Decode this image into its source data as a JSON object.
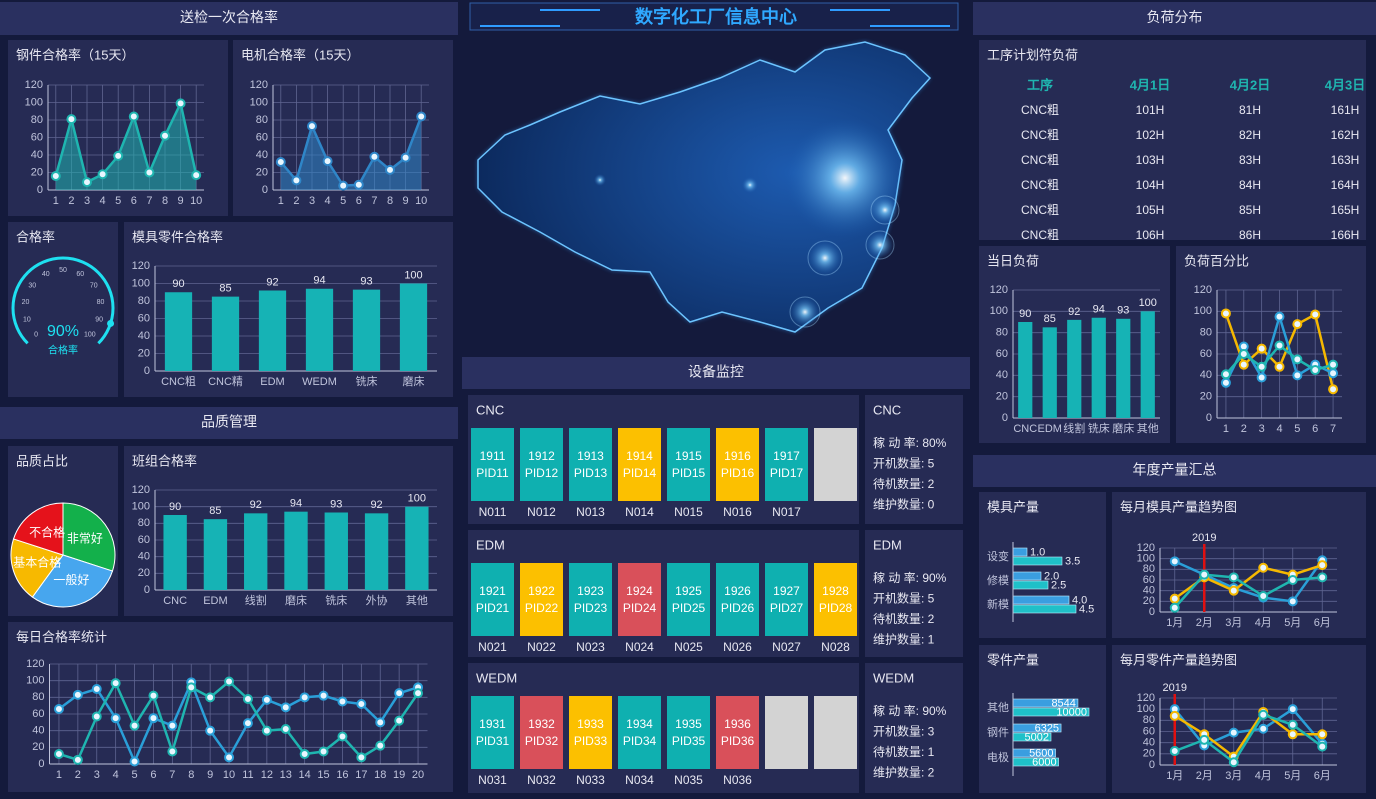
{
  "header": {
    "title": "数字化工厂信息中心"
  },
  "sections": [
    "送检一次合格率",
    "品质管理",
    "设备监控",
    "负荷分布",
    "年度产量汇总"
  ],
  "chart_data": [
    {
      "type": "line",
      "title": "钢件合格率（15天）",
      "categories": [
        "1",
        "2",
        "3",
        "4",
        "5",
        "6",
        "7",
        "8",
        "9",
        "10"
      ],
      "series": [
        {
          "color": "#1fb5b0",
          "values": [
            16,
            81,
            9,
            18,
            39,
            84,
            20,
            62,
            99,
            17
          ]
        }
      ],
      "area": true,
      "ylim": [
        0,
        120
      ],
      "yticks": [
        0,
        20,
        40,
        60,
        80,
        100,
        120
      ],
      "grid": "both"
    },
    {
      "type": "line",
      "title": "电机合格率（15天）",
      "categories": [
        "1",
        "2",
        "3",
        "4",
        "5",
        "6",
        "7",
        "8",
        "9",
        "10"
      ],
      "series": [
        {
          "color": "#2f86c8",
          "values": [
            32,
            11,
            73,
            33,
            5,
            6,
            38,
            23,
            37,
            84
          ]
        }
      ],
      "area": true,
      "ylim": [
        0,
        120
      ],
      "yticks": [
        0,
        20,
        40,
        60,
        80,
        100,
        120
      ],
      "grid": "both"
    },
    {
      "type": "gauge",
      "title": "合格率",
      "label": "合格率",
      "values": [
        90
      ],
      "value_labels": [
        "90%"
      ],
      "lim": [
        0,
        100
      ],
      "ticks": [
        0,
        10,
        20,
        30,
        40,
        50,
        60,
        70,
        80,
        90,
        100
      ],
      "color": "#1ee0f0"
    },
    {
      "type": "bar",
      "title": "模具零件合格率",
      "categories": [
        "CNC粗",
        "CNC精",
        "EDM",
        "WEDM",
        "铣床",
        "磨床"
      ],
      "values": [
        90,
        85,
        92,
        94,
        93,
        100
      ],
      "color": "#16b3b5",
      "labels": true,
      "ylim": [
        0,
        120
      ],
      "yticks": [
        0,
        20,
        40,
        60,
        80,
        100,
        120
      ],
      "grid": "y"
    },
    {
      "type": "pie",
      "title": "品质占比",
      "categories": [
        "非常好",
        "一般好",
        "基本合格",
        "不合格"
      ],
      "values": [
        30,
        30,
        20,
        20
      ],
      "colors": [
        "#13b04b",
        "#47a6ee",
        "#f7b900",
        "#e5121b"
      ]
    },
    {
      "type": "bar",
      "title": "班组合格率",
      "categories": [
        "CNC",
        "EDM",
        "线割",
        "磨床",
        "铣床",
        "外协",
        "其他"
      ],
      "values": [
        90,
        85,
        92,
        94,
        93,
        92,
        100
      ],
      "color": "#16b3b5",
      "labels": true,
      "ylim": [
        0,
        120
      ],
      "yticks": [
        0,
        20,
        40,
        60,
        80,
        100,
        120
      ],
      "grid": "y"
    },
    {
      "type": "line",
      "title": "每日合格率统计",
      "categories": [
        "1",
        "2",
        "3",
        "4",
        "5",
        "6",
        "7",
        "8",
        "9",
        "10",
        "11",
        "12",
        "13",
        "14",
        "15",
        "16",
        "17",
        "18",
        "19",
        "20"
      ],
      "series": [
        {
          "color": "#2a9fd8",
          "values": [
            66,
            83,
            90,
            55,
            3,
            55,
            46,
            98,
            40,
            8,
            49,
            77,
            68,
            80,
            82,
            75,
            72,
            50,
            85,
            92
          ]
        },
        {
          "color": "#1fb5b0",
          "values": [
            12,
            5,
            57,
            97,
            46,
            82,
            15,
            92,
            80,
            99,
            78,
            40,
            42,
            12,
            15,
            33,
            8,
            22,
            52,
            85
          ]
        }
      ],
      "ylim": [
        0,
        120
      ],
      "yticks": [
        0,
        20,
        40,
        60,
        80,
        100,
        120
      ],
      "grid": "both"
    },
    {
      "type": "bar",
      "title": "当日负荷",
      "categories": [
        "CNC",
        "EDM",
        "线割",
        "铣床",
        "磨床",
        "其他"
      ],
      "values": [
        90,
        85,
        92,
        94,
        93,
        100
      ],
      "color": "#16b3b5",
      "labels": true,
      "ylim": [
        0,
        120
      ],
      "yticks": [
        0,
        20,
        40,
        60,
        80,
        100,
        120
      ],
      "grid": "y"
    },
    {
      "type": "line",
      "title": "负荷百分比",
      "categories": [
        "1",
        "2",
        "3",
        "4",
        "5",
        "6",
        "7"
      ],
      "series": [
        {
          "color": "#f5b800",
          "values": [
            98,
            50,
            65,
            48,
            88,
            97,
            27
          ]
        },
        {
          "color": "#2a9fd8",
          "values": [
            33,
            67,
            38,
            95,
            40,
            50,
            42
          ]
        },
        {
          "color": "#1fb5b0",
          "values": [
            41,
            60,
            48,
            68,
            55,
            45,
            50
          ]
        }
      ],
      "ylim": [
        0,
        120
      ],
      "yticks": [
        0,
        20,
        40,
        60,
        80,
        100,
        120
      ],
      "grid": "both"
    },
    {
      "type": "barh",
      "title": "模具产量",
      "categories": [
        "设变",
        "修模",
        "新模"
      ],
      "series": [
        {
          "color": "#3a9ee0",
          "values": [
            1.0,
            2.0,
            4.0
          ],
          "value_labels": [
            "1.0",
            "2.0",
            "4.0"
          ]
        },
        {
          "color": "#1fc0c8",
          "values": [
            3.5,
            2.5,
            4.5
          ],
          "value_labels": [
            "3.5",
            "2.5",
            "4.5"
          ]
        }
      ],
      "xlim": [
        0,
        5
      ],
      "label_position": "outside"
    },
    {
      "type": "line",
      "title": "每月模具产量趋势图",
      "categories": [
        "1月",
        "2月",
        "3月",
        "4月",
        "5月",
        "6月"
      ],
      "series": [
        {
          "color": "#2a9fd8",
          "values": [
            95,
            70,
            45,
            27,
            20,
            97
          ]
        },
        {
          "color": "#f5b800",
          "values": [
            25,
            65,
            40,
            83,
            70,
            88
          ]
        },
        {
          "color": "#1fb5b0",
          "values": [
            8,
            70,
            65,
            30,
            60,
            65
          ]
        }
      ],
      "markline": {
        "label": "2019",
        "x": "2月",
        "color": "#e01010"
      },
      "ylim": [
        0,
        120
      ],
      "yticks": [
        0,
        20,
        40,
        60,
        80,
        100,
        120
      ],
      "grid": "both"
    },
    {
      "type": "barh",
      "title": "零件产量",
      "categories": [
        "其他",
        "钢件",
        "电极"
      ],
      "series": [
        {
          "color": "#3a9ee0",
          "values": [
            8544,
            6325,
            5600
          ]
        },
        {
          "color": "#1fc0c8",
          "values": [
            10000,
            5002,
            6000
          ]
        }
      ],
      "xlim": [
        0,
        10000
      ],
      "label_position": "inside"
    },
    {
      "type": "line",
      "title": "每月零件产量趋势图",
      "categories": [
        "1月",
        "2月",
        "3月",
        "4月",
        "5月",
        "6月"
      ],
      "series": [
        {
          "color": "#2a9fd8",
          "values": [
            100,
            35,
            58,
            65,
            100,
            38
          ]
        },
        {
          "color": "#f5b800",
          "values": [
            88,
            55,
            15,
            95,
            55,
            55
          ]
        },
        {
          "color": "#1fb5b0",
          "values": [
            25,
            45,
            5,
            90,
            72,
            33
          ]
        }
      ],
      "markline": {
        "label": "2019",
        "x": "1月",
        "color": "#e01010"
      },
      "ylim": [
        0,
        120
      ],
      "yticks": [
        0,
        20,
        40,
        60,
        80,
        100,
        120
      ],
      "grid": "both"
    }
  ],
  "load_table": {
    "title": "工序计划符负荷",
    "columns": [
      "工序",
      "4月1日",
      "4月2日",
      "4月3日"
    ],
    "rows": [
      [
        "CNC粗",
        "101H",
        "81H",
        "161H"
      ],
      [
        "CNC粗",
        "102H",
        "82H",
        "162H"
      ],
      [
        "CNC粗",
        "103H",
        "83H",
        "163H"
      ],
      [
        "CNC粗",
        "104H",
        "84H",
        "164H"
      ],
      [
        "CNC粗",
        "105H",
        "85H",
        "165H"
      ],
      [
        "CNC粗",
        "106H",
        "86H",
        "166H"
      ]
    ]
  },
  "devices": [
    {
      "name": "CNC",
      "machines": [
        {
          "id": "1911",
          "pid": "PID11",
          "code": "N011",
          "color": "#0fb0b0"
        },
        {
          "id": "1912",
          "pid": "PID12",
          "code": "N012",
          "color": "#0fb0b0"
        },
        {
          "id": "1913",
          "pid": "PID13",
          "code": "N013",
          "color": "#0fb0b0"
        },
        {
          "id": "1914",
          "pid": "PID14",
          "code": "N014",
          "color": "#fcc000"
        },
        {
          "id": "1915",
          "pid": "PID15",
          "code": "N015",
          "color": "#0fb0b0"
        },
        {
          "id": "1916",
          "pid": "PID16",
          "code": "N016",
          "color": "#fcc000"
        },
        {
          "id": "1917",
          "pid": "PID17",
          "code": "N017",
          "color": "#0fb0b0"
        },
        {
          "color": "#d3d3d3"
        }
      ],
      "stats": [
        "稼 动 率: 80%",
        "开机数量: 5",
        "待机数量: 2",
        "维护数量: 0"
      ]
    },
    {
      "name": "EDM",
      "machines": [
        {
          "id": "1921",
          "pid": "PID21",
          "code": "N021",
          "color": "#0fb0b0"
        },
        {
          "id": "1922",
          "pid": "PID22",
          "code": "N022",
          "color": "#fcc000"
        },
        {
          "id": "1923",
          "pid": "PID23",
          "code": "N023",
          "color": "#0fb0b0"
        },
        {
          "id": "1924",
          "pid": "PID24",
          "code": "N024",
          "color": "#d9505a"
        },
        {
          "id": "1925",
          "pid": "PID25",
          "code": "N025",
          "color": "#0fb0b0"
        },
        {
          "id": "1926",
          "pid": "PID26",
          "code": "N026",
          "color": "#0fb0b0"
        },
        {
          "id": "1927",
          "pid": "PID27",
          "code": "N027",
          "color": "#0fb0b0"
        },
        {
          "id": "1928",
          "pid": "PID28",
          "code": "N028",
          "color": "#fcc000"
        }
      ],
      "stats": [
        "稼 动 率: 90%",
        "开机数量: 5",
        "待机数量: 2",
        "维护数量: 1"
      ]
    },
    {
      "name": "WEDM",
      "machines": [
        {
          "id": "1931",
          "pid": "PID31",
          "code": "N031",
          "color": "#0fb0b0"
        },
        {
          "id": "1932",
          "pid": "PID32",
          "code": "N032",
          "color": "#d9505a"
        },
        {
          "id": "1933",
          "pid": "PID33",
          "code": "N033",
          "color": "#fcc000"
        },
        {
          "id": "1934",
          "pid": "PID34",
          "code": "N034",
          "color": "#0fb0b0"
        },
        {
          "id": "1935",
          "pid": "PID35",
          "code": "N035",
          "color": "#0fb0b0"
        },
        {
          "id": "1936",
          "pid": "PID36",
          "code": "N036",
          "color": "#d9505a"
        },
        {
          "color": "#d3d3d3"
        },
        {
          "color": "#d3d3d3"
        }
      ],
      "stats": [
        "稼 动 率: 90%",
        "开机数量: 3",
        "待机数量: 1",
        "维护数量: 2"
      ]
    }
  ]
}
